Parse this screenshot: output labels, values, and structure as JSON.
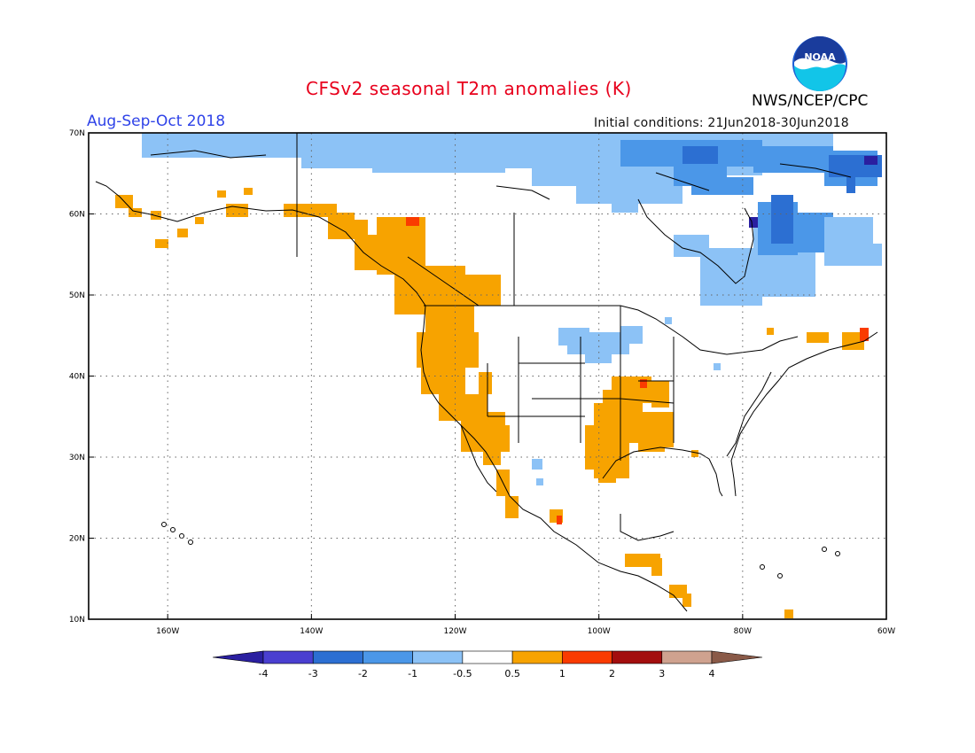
{
  "header": {
    "title": "CFSv2 seasonal T2m anomalies (K)",
    "season": "Aug-Sep-Oct 2018",
    "initial_conditions": "Initial conditions: 21Jun2018-30Jun2018",
    "agency": "NWS/NCEP/CPC",
    "logo_text": "NOAA"
  },
  "map": {
    "lon_range": [
      -171,
      -60
    ],
    "lat_range": [
      10,
      70
    ],
    "lon_tick_labels": [
      "160W",
      "140W",
      "120W",
      "100W",
      "80W",
      "60W"
    ],
    "lat_tick_labels": [
      "10N",
      "20N",
      "30N",
      "40N",
      "50N",
      "60N",
      "70N"
    ],
    "gridlines": "dotted"
  },
  "colorbar": {
    "labels": [
      "-4",
      "-3",
      "-2",
      "-1",
      "-0.5",
      "0.5",
      "1",
      "2",
      "3",
      "4"
    ],
    "colors": [
      "#2a1fa0",
      "#4a3fd0",
      "#2c6fd2",
      "#4b97e8",
      "#8cc2f6",
      "#ffffff",
      "#f7a300",
      "#fa3b00",
      "#a30e0e",
      "#cfa28f",
      "#8a5a48"
    ]
  },
  "anomaly_regions": [
    {
      "name": "Pacific Northwest and West Coast warm",
      "category": "0.5 to 1"
    },
    {
      "name": "Southern Plains warm",
      "category": "0.5 to 1"
    },
    {
      "name": "Northern Canada cool",
      "category": "-1 to -0.5"
    },
    {
      "name": "Quebec and Labrador cool",
      "category": "-2 to -1"
    },
    {
      "name": "Upper Midwest cool",
      "category": "-1 to -0.5"
    }
  ]
}
